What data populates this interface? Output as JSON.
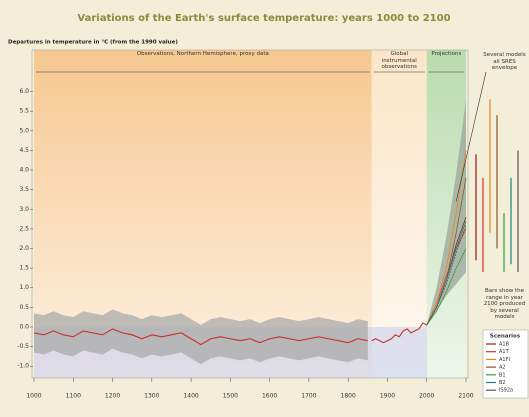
{
  "chart_data": {
    "type": "line",
    "title": "Variations of the Earth's surface temperature: years 1000 to 2100",
    "y_label": "Departures in temperature in °C (from the 1990 value)",
    "xlim": [
      1000,
      2100
    ],
    "ylim": [
      -1.3,
      6.6
    ],
    "xticks": [
      1000,
      1100,
      1200,
      1300,
      1400,
      1500,
      1600,
      1700,
      1800,
      1900,
      2000,
      2100
    ],
    "yticks": [
      {
        "value": 6,
        "label": "6.0"
      },
      {
        "value": 5.5,
        "label": "5.5"
      },
      {
        "value": 5,
        "label": "5.0"
      },
      {
        "value": 4.5,
        "label": "4.5"
      },
      {
        "value": 4,
        "label": "4.0"
      },
      {
        "value": 3.5,
        "label": "3.5"
      },
      {
        "value": 3,
        "label": "3.0"
      },
      {
        "value": 2.5,
        "label": "2.5"
      },
      {
        "value": 2,
        "label": "2.0"
      },
      {
        "value": 1.5,
        "label": "1.5"
      },
      {
        "value": 1,
        "label": "1.0"
      },
      {
        "value": 0.5,
        "label": "0.5"
      },
      {
        "value": 0,
        "label": "0.0"
      },
      {
        "value": -0.5,
        "label": "-0.5"
      },
      {
        "value": -1,
        "label": "-1.0"
      }
    ],
    "regions": [
      {
        "label": "Observations, Northern Hemisphere, proxy data",
        "start": 1000,
        "end": 1860,
        "color": "#f7c890"
      },
      {
        "label": "Global instrumental observations",
        "start": 1860,
        "end": 2000,
        "color": "#fbe6c8"
      },
      {
        "label": "Projections",
        "start": 2000,
        "end": 2100,
        "color": "#b9dcae"
      }
    ],
    "band": {
      "color": "#a9a9a9",
      "x": [
        1000,
        1025,
        1050,
        1075,
        1100,
        1125,
        1150,
        1175,
        1200,
        1225,
        1250,
        1275,
        1300,
        1325,
        1350,
        1375,
        1400,
        1425,
        1450,
        1475,
        1500,
        1525,
        1550,
        1575,
        1600,
        1625,
        1650,
        1675,
        1700,
        1725,
        1750,
        1775,
        1800,
        1825,
        1850
      ],
      "high": [
        0.35,
        0.3,
        0.4,
        0.3,
        0.25,
        0.4,
        0.35,
        0.3,
        0.45,
        0.35,
        0.3,
        0.2,
        0.3,
        0.25,
        0.3,
        0.35,
        0.2,
        0.05,
        0.2,
        0.25,
        0.2,
        0.15,
        0.2,
        0.1,
        0.2,
        0.25,
        0.2,
        0.15,
        0.2,
        0.25,
        0.2,
        0.15,
        0.1,
        0.2,
        0.15
      ],
      "low": [
        -0.65,
        -0.7,
        -0.6,
        -0.7,
        -0.75,
        -0.6,
        -0.65,
        -0.7,
        -0.55,
        -0.65,
        -0.7,
        -0.8,
        -0.7,
        -0.75,
        -0.7,
        -0.65,
        -0.8,
        -0.95,
        -0.8,
        -0.75,
        -0.8,
        -0.85,
        -0.8,
        -0.9,
        -0.8,
        -0.75,
        -0.8,
        -0.85,
        -0.8,
        -0.75,
        -0.8,
        -0.85,
        -0.9,
        -0.8,
        -0.85
      ]
    },
    "envelope": {
      "color": "#9aa59a",
      "x": [
        2000,
        2025,
        2050,
        2075,
        2100
      ],
      "low": [
        0.05,
        0.4,
        0.8,
        1.1,
        1.4
      ],
      "high": [
        0.05,
        1.0,
        2.3,
        3.9,
        5.8
      ]
    },
    "history": [
      {
        "color": "#c8302a",
        "x": [
          1000,
          1025,
          1050,
          1075,
          1100,
          1125,
          1150,
          1175,
          1200,
          1225,
          1250,
          1275,
          1300,
          1325,
          1350,
          1375,
          1400,
          1425,
          1450,
          1475,
          1500,
          1525,
          1550,
          1575,
          1600,
          1625,
          1650,
          1675,
          1700,
          1725,
          1750,
          1775,
          1800,
          1825,
          1850
        ],
        "values": [
          -0.15,
          -0.2,
          -0.1,
          -0.2,
          -0.25,
          -0.1,
          -0.15,
          -0.2,
          -0.05,
          -0.15,
          -0.2,
          -0.3,
          -0.2,
          -0.25,
          -0.2,
          -0.15,
          -0.3,
          -0.45,
          -0.3,
          -0.25,
          -0.3,
          -0.35,
          -0.3,
          -0.4,
          -0.3,
          -0.25,
          -0.3,
          -0.35,
          -0.3,
          -0.25,
          -0.3,
          -0.35,
          -0.4,
          -0.3,
          -0.35
        ]
      },
      {
        "color": "#c8302a",
        "x": [
          1860,
          1870,
          1880,
          1890,
          1900,
          1910,
          1920,
          1930,
          1940,
          1950,
          1960,
          1970,
          1980,
          1990,
          2000
        ],
        "values": [
          -0.35,
          -0.3,
          -0.35,
          -0.4,
          -0.35,
          -0.3,
          -0.2,
          -0.25,
          -0.1,
          -0.05,
          -0.15,
          -0.1,
          -0.05,
          0.1,
          0.05
        ]
      }
    ],
    "annotation": "Several models all SRES envelope",
    "bars_note": "Bars show the range in year 2100 produced by several models",
    "legend_title": "Scenarios",
    "series": [
      {
        "name": "A1B",
        "color": "#8b1a1a",
        "x": [
          2000,
          2025,
          2050,
          2075,
          2100
        ],
        "values": [
          0.05,
          0.5,
          1.2,
          2.1,
          2.8
        ],
        "range_2100": [
          1.7,
          4.4
        ]
      },
      {
        "name": "A1T",
        "color": "#e03030",
        "x": [
          2000,
          2025,
          2050,
          2075,
          2100
        ],
        "values": [
          0.05,
          0.6,
          1.3,
          2.0,
          2.5
        ],
        "range_2100": [
          1.4,
          3.8
        ]
      },
      {
        "name": "A1FI",
        "color": "#f08020",
        "x": [
          2000,
          2025,
          2050,
          2075,
          2100
        ],
        "values": [
          0.05,
          0.6,
          1.5,
          2.9,
          4.5
        ],
        "range_2100": [
          2.4,
          5.8
        ]
      },
      {
        "name": "A2",
        "color": "#8a5a2a",
        "x": [
          2000,
          2025,
          2050,
          2075,
          2100
        ],
        "values": [
          0.05,
          0.5,
          1.2,
          2.4,
          3.8
        ],
        "range_2100": [
          2.0,
          5.4
        ]
      },
      {
        "name": "B1",
        "color": "#30a040",
        "x": [
          2000,
          2025,
          2050,
          2075,
          2100
        ],
        "values": [
          0.05,
          0.4,
          0.9,
          1.5,
          2.0
        ],
        "range_2100": [
          1.4,
          2.9
        ]
      },
      {
        "name": "B2",
        "color": "#208080",
        "x": [
          2000,
          2025,
          2050,
          2075,
          2100
        ],
        "values": [
          0.05,
          0.5,
          1.2,
          2.0,
          2.7
        ],
        "range_2100": [
          1.6,
          3.8
        ]
      },
      {
        "name": "IS92a",
        "color": "#555555",
        "x": [
          2000,
          2025,
          2050,
          2075,
          2100
        ],
        "values": [
          0.05,
          0.5,
          1.1,
          1.9,
          2.6
        ],
        "range_2100": [
          1.4,
          4.5
        ]
      }
    ]
  }
}
